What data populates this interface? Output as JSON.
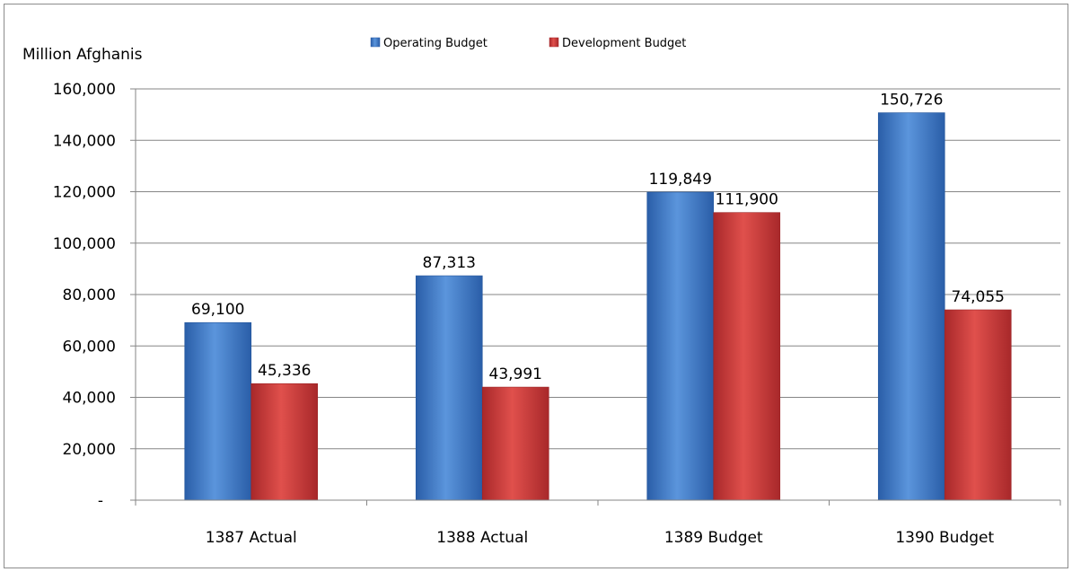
{
  "chart_data": {
    "type": "bar",
    "ylabel": "Million Afghanis",
    "categories": [
      "1387 Actual",
      "1388 Actual",
      "1389 Budget",
      "1390 Budget"
    ],
    "series": [
      {
        "name": "Operating Budget",
        "values": [
          69100,
          87313,
          119849,
          150726
        ],
        "value_labels": [
          "69,100",
          "87,313",
          "119,849",
          "150,726"
        ]
      },
      {
        "name": "Development Budget",
        "values": [
          45336,
          43991,
          111900,
          74055
        ],
        "value_labels": [
          "45,336",
          "43,991",
          "111,900",
          "74,055"
        ]
      }
    ],
    "ylim": [
      0,
      160000
    ],
    "yticks": [
      0,
      20000,
      40000,
      60000,
      80000,
      100000,
      120000,
      140000,
      160000
    ],
    "ytick_labels": [
      "-",
      "20,000",
      "40,000",
      "60,000",
      "80,000",
      "100,000",
      "120,000",
      "140,000",
      "160,000"
    ],
    "grid": true,
    "legend_position": "top-center",
    "colors": {
      "Operating Budget": "#3a76c4",
      "Development Budget": "#cc3b37"
    }
  }
}
